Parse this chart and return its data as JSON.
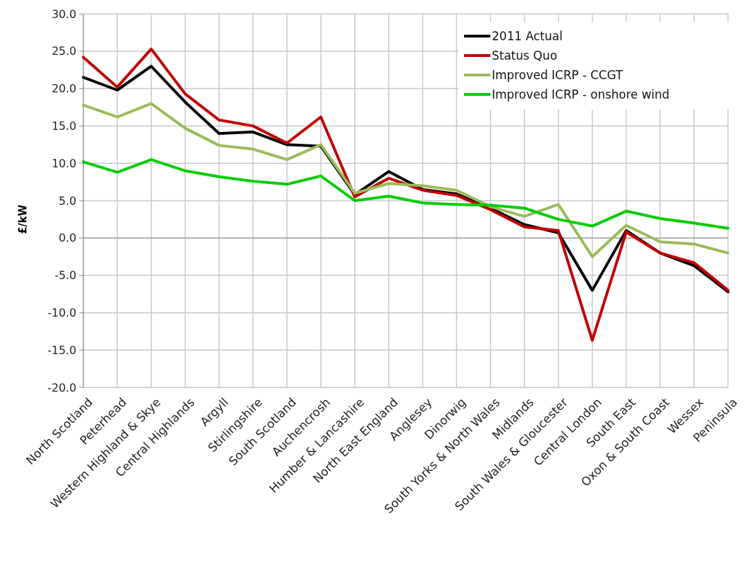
{
  "chart_data": {
    "type": "line",
    "ylabel": "£/kW",
    "categories": [
      "North Scotland",
      "Peterhead",
      "Western Highland & Skye",
      "Central Highlands",
      "Argyll",
      "Stirlingshire",
      "South Scotland",
      "Auchencrosh",
      "Humber & Lancashire",
      "North East England",
      "Anglesey",
      "Dinorwig",
      "South Yorks & North Wales",
      "Midlands",
      "South Wales & Gloucester",
      "Central London",
      "South East",
      "Oxon & South Coast",
      "Wessex",
      "Peninsula"
    ],
    "series": [
      {
        "name": "2011 Actual",
        "color": "#000000",
        "values": [
          21.5,
          19.8,
          23.0,
          18.2,
          14.0,
          14.2,
          12.5,
          12.3,
          5.8,
          8.9,
          6.5,
          5.9,
          4.0,
          1.8,
          0.7,
          -7.0,
          1.0,
          -2.0,
          -3.7,
          -7.2
        ]
      },
      {
        "name": "Status Quo",
        "color": "#c00000",
        "values": [
          24.2,
          20.2,
          25.3,
          19.3,
          15.8,
          15.0,
          12.7,
          16.2,
          5.5,
          8.0,
          6.4,
          5.7,
          3.8,
          1.5,
          1.0,
          -13.7,
          0.8,
          -2.0,
          -3.3,
          -7.0
        ]
      },
      {
        "name": "Improved ICRP - CCGT",
        "color": "#9bbb59",
        "values": [
          17.8,
          16.2,
          18.0,
          14.7,
          12.4,
          11.9,
          10.5,
          12.5,
          6.0,
          7.3,
          7.0,
          6.4,
          4.2,
          2.9,
          4.5,
          -2.5,
          1.7,
          -0.5,
          -0.8,
          -2.0
        ]
      },
      {
        "name": "Improved ICRP - onshore wind",
        "color": "#00cc00",
        "values": [
          10.2,
          8.8,
          10.5,
          9.0,
          8.2,
          7.6,
          7.2,
          8.3,
          5.0,
          5.6,
          4.7,
          4.5,
          4.4,
          4.0,
          2.5,
          1.6,
          3.6,
          2.6,
          2.0,
          1.3
        ]
      }
    ],
    "ylim": [
      -20,
      30
    ],
    "yticks": [
      {
        "value": -20,
        "label": "-20.0"
      },
      {
        "value": -15,
        "label": "-15.0"
      },
      {
        "value": -10,
        "label": "-10.0"
      },
      {
        "value": -5,
        "label": "-5.0"
      },
      {
        "value": 0,
        "label": "0.0"
      },
      {
        "value": 5,
        "label": "5.0"
      },
      {
        "value": 10,
        "label": "10.0"
      },
      {
        "value": 15,
        "label": "15.0"
      },
      {
        "value": 20,
        "label": "20.0"
      },
      {
        "value": 25,
        "label": "25.0"
      },
      {
        "value": 30,
        "label": "30.0"
      }
    ],
    "grid": true,
    "legend": "top right",
    "marker": "none",
    "line_style": "solid"
  }
}
